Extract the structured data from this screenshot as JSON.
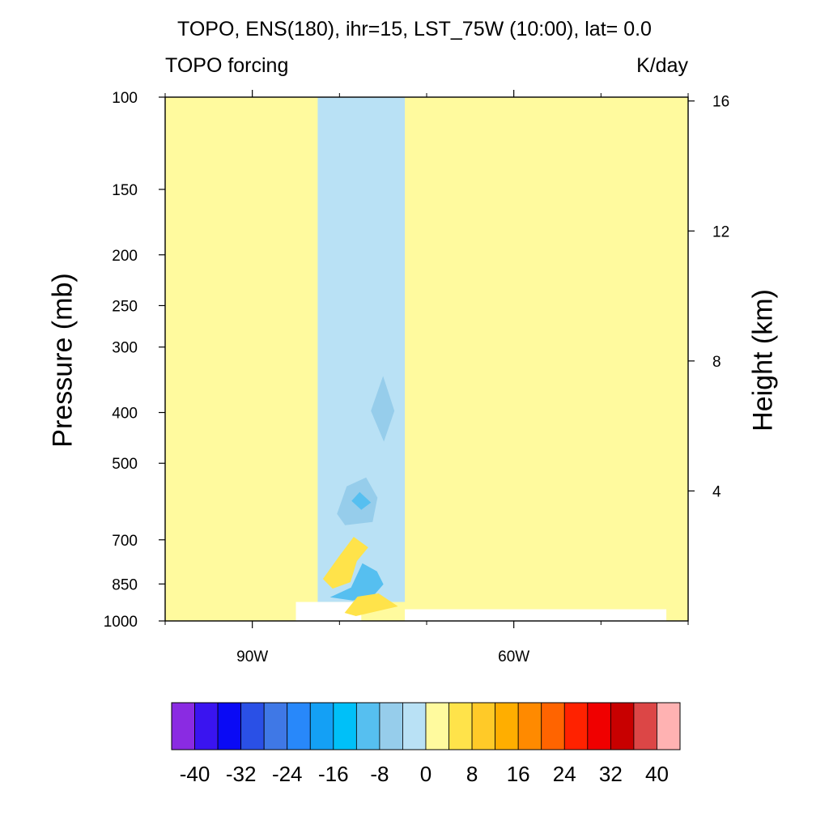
{
  "title": "TOPO, ENS(180), ihr=15, LST_75W (10:00), lat=  0.0",
  "left_subtitle": "TOPO forcing",
  "right_subtitle": "K/day",
  "chart_data": {
    "type": "heatmap",
    "description_of_axes": "pressure-longitude cross section",
    "ylabel_left": "Pressure (mb)",
    "ylabel_right": "Height (km)",
    "x_axis": {
      "range_deg_west": [
        100,
        40
      ],
      "ticks": [
        {
          "lon": 90,
          "label": "90W"
        },
        {
          "lon": 60,
          "label": "60W"
        }
      ],
      "minor_ticks_lon": [
        100,
        80,
        70,
        50,
        40
      ]
    },
    "y_axis_left": {
      "scale": "log-pressure",
      "range_mb": [
        1000,
        100
      ],
      "ticks": [
        100,
        150,
        200,
        250,
        300,
        400,
        500,
        700,
        850,
        1000
      ]
    },
    "y_axis_right": {
      "ticks_km": [
        4,
        8,
        12,
        16
      ]
    },
    "field_regions": [
      {
        "name": "background-positive",
        "level": "0 to 4",
        "color": "#fffa9e",
        "lon_w": [
          100,
          40
        ],
        "p_mb": [
          1000,
          100
        ]
      },
      {
        "name": "negative-band",
        "level": "-4 to 0",
        "color": "#b9e1f5",
        "lon_w": [
          82.5,
          72.5
        ],
        "p_mb": [
          920,
          100
        ]
      },
      {
        "name": "terrain-mask-left",
        "level": "missing",
        "color": "#ffffff",
        "lon_w": [
          85,
          77.5
        ],
        "p_mb": [
          1000,
          920
        ]
      },
      {
        "name": "terrain-mask-right",
        "level": "missing",
        "color": "#ffffff",
        "lon_w": [
          72.5,
          42.5
        ],
        "p_mb": [
          1000,
          950
        ]
      }
    ],
    "features": [
      {
        "name": "weak-min-upper",
        "level": "-8 to -4",
        "color": "#96cdeb",
        "lon_w": 75,
        "p_mb": 400
      },
      {
        "name": "min-mid",
        "level": "-8 to -4",
        "color": "#96cdeb",
        "lon_w": 77.5,
        "p_mb": 590
      },
      {
        "name": "min-mid-core",
        "level": "-12 to -8",
        "color": "#56bff0",
        "lon_w": 77.5,
        "p_mb": 590
      },
      {
        "name": "max-low",
        "level": "4 to 12",
        "color": "#ffe34a",
        "lon_w": 78,
        "p_mb": 780
      },
      {
        "name": "min-low",
        "level": "-12 to -4",
        "color": "#56bff0",
        "lon_w": 77,
        "p_mb": 810
      },
      {
        "name": "max-surface",
        "level": "4 to 8",
        "color": "#ffe34a",
        "lon_w": 77,
        "p_mb": 905
      }
    ],
    "colorbar": {
      "labels": [
        "-40",
        "-32",
        "-24",
        "-16",
        "-8",
        "0",
        "8",
        "16",
        "24",
        "32",
        "40"
      ],
      "colors": [
        "#8a2be2",
        "#3a14f0",
        "#0a0af5",
        "#2a50e6",
        "#3f78e6",
        "#2888fa",
        "#14a0f5",
        "#00c0f8",
        "#56bff0",
        "#96cdeb",
        "#b9e1f5",
        "#fffa9e",
        "#ffe34a",
        "#ffca28",
        "#ffae00",
        "#ff8a00",
        "#ff6400",
        "#ff2200",
        "#f00000",
        "#c80000",
        "#dc4646",
        "#ffb2b2"
      ]
    }
  }
}
